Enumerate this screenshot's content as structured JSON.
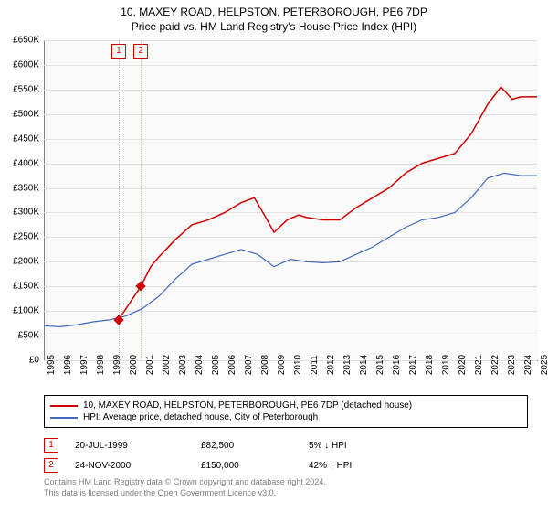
{
  "title": "10, MAXEY ROAD, HELPSTON, PETERBOROUGH, PE6 7DP",
  "subtitle": "Price paid vs. HM Land Registry's House Price Index (HPI)",
  "chart": {
    "type": "line",
    "background_color": "#fafafa",
    "grid_color": "#e0e0e0",
    "axis_color": "#808080",
    "ylim": [
      0,
      650000
    ],
    "ytick_step": 50000,
    "ytick_labels": [
      "£0",
      "£50K",
      "£100K",
      "£150K",
      "£200K",
      "£250K",
      "£300K",
      "£350K",
      "£400K",
      "£450K",
      "£500K",
      "£550K",
      "£600K",
      "£650K"
    ],
    "ytick_fontsize": 10,
    "xlim": [
      1995,
      2025
    ],
    "xticks": [
      1995,
      1996,
      1997,
      1998,
      1999,
      2000,
      2001,
      2002,
      2003,
      2004,
      2005,
      2006,
      2007,
      2008,
      2009,
      2010,
      2011,
      2012,
      2013,
      2014,
      2015,
      2016,
      2017,
      2018,
      2019,
      2020,
      2021,
      2022,
      2023,
      2024,
      2025
    ],
    "xtick_fontsize": 10,
    "series": [
      {
        "name": "price_paid",
        "color": "#d00000",
        "line_width": 1.5,
        "data": [
          [
            1999.55,
            82500
          ],
          [
            2000.9,
            150000
          ],
          [
            2001.5,
            190000
          ],
          [
            2002,
            210000
          ],
          [
            2003,
            245000
          ],
          [
            2004,
            275000
          ],
          [
            2005,
            285000
          ],
          [
            2006,
            300000
          ],
          [
            2007,
            320000
          ],
          [
            2007.8,
            330000
          ],
          [
            2008.5,
            290000
          ],
          [
            2009,
            260000
          ],
          [
            2009.8,
            285000
          ],
          [
            2010.5,
            295000
          ],
          [
            2011,
            290000
          ],
          [
            2012,
            285000
          ],
          [
            2013,
            285000
          ],
          [
            2014,
            310000
          ],
          [
            2015,
            330000
          ],
          [
            2016,
            350000
          ],
          [
            2017,
            380000
          ],
          [
            2018,
            400000
          ],
          [
            2019,
            410000
          ],
          [
            2020,
            420000
          ],
          [
            2021,
            460000
          ],
          [
            2022,
            520000
          ],
          [
            2022.8,
            555000
          ],
          [
            2023.5,
            530000
          ],
          [
            2024,
            535000
          ],
          [
            2025,
            535000
          ]
        ]
      },
      {
        "name": "hpi",
        "color": "#4169c0",
        "line_width": 1.2,
        "data": [
          [
            1995,
            70000
          ],
          [
            1996,
            68000
          ],
          [
            1997,
            72000
          ],
          [
            1998,
            78000
          ],
          [
            1999,
            82000
          ],
          [
            2000,
            90000
          ],
          [
            2001,
            105000
          ],
          [
            2002,
            130000
          ],
          [
            2003,
            165000
          ],
          [
            2004,
            195000
          ],
          [
            2005,
            205000
          ],
          [
            2006,
            215000
          ],
          [
            2007,
            225000
          ],
          [
            2008,
            215000
          ],
          [
            2009,
            190000
          ],
          [
            2010,
            205000
          ],
          [
            2011,
            200000
          ],
          [
            2012,
            198000
          ],
          [
            2013,
            200000
          ],
          [
            2014,
            215000
          ],
          [
            2015,
            230000
          ],
          [
            2016,
            250000
          ],
          [
            2017,
            270000
          ],
          [
            2018,
            285000
          ],
          [
            2019,
            290000
          ],
          [
            2020,
            300000
          ],
          [
            2021,
            330000
          ],
          [
            2022,
            370000
          ],
          [
            2023,
            380000
          ],
          [
            2024,
            375000
          ],
          [
            2025,
            375000
          ]
        ]
      }
    ],
    "sale_markers": [
      {
        "label": "1",
        "x": 1999.55,
        "y": 82500,
        "dot_color": "#d0b0b0"
      },
      {
        "label": "2",
        "x": 2000.9,
        "y": 150000,
        "dot_color": "#d0c0a0"
      }
    ],
    "marker_box_color": "#d00000"
  },
  "legend": {
    "border_color": "#000000",
    "items": [
      {
        "color": "#d00000",
        "label": "10, MAXEY ROAD, HELPSTON, PETERBOROUGH, PE6 7DP (detached house)"
      },
      {
        "color": "#4169c0",
        "label": "HPI: Average price, detached house, City of Peterborough"
      }
    ]
  },
  "sales": [
    {
      "marker": "1",
      "date": "20-JUL-1999",
      "price": "£82,500",
      "diff": "5% ↓ HPI"
    },
    {
      "marker": "2",
      "date": "24-NOV-2000",
      "price": "£150,000",
      "diff": "42% ↑ HPI"
    }
  ],
  "footer_line1": "Contains HM Land Registry data © Crown copyright and database right 2024.",
  "footer_line2": "This data is licensed under the Open Government Licence v3.0."
}
